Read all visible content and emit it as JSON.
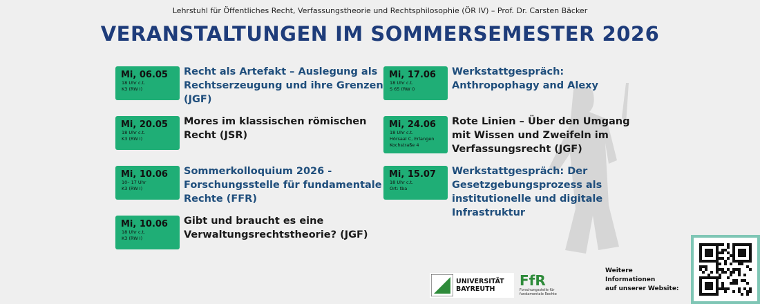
{
  "header": {
    "subtitle": "Lehrstuhl für Öffentliches Recht, Verfassungstheorie und Rechtsphilosophie (ÖR IV) – Prof. Dr. Carsten Bäcker",
    "title": "VERANSTALTUNGEN IM SOMMERSEMESTER 2026"
  },
  "events": [
    {
      "date": "Mi, 06.05",
      "details": [
        "18 Uhr c.t.",
        "K3 (RW I)"
      ],
      "title": [
        "Recht als Artefakt – Auslegung als",
        "Rechtserzeugung und ihre Grenzen",
        "(JGF)"
      ],
      "color": "#1f4e7c"
    },
    {
      "date": "Mi, 20.05",
      "details": [
        "18 Uhr c.t.",
        "K3 (RW I)"
      ],
      "title": [
        "Mores im klassischen römischen",
        "Recht (JSR)"
      ],
      "color": "#1a1a1a"
    },
    {
      "date": "Mi, 10.06",
      "details": [
        "10– 17 Uhr",
        "K3 (RW I)"
      ],
      "title": [
        "Sommerkolloquium 2026 -",
        "Forschungsstelle für fundamentale",
        "Rechte (FFR)"
      ],
      "color": "#1f4e7c"
    },
    {
      "date": "Mi, 10.06",
      "details": [
        "18 Uhr c.t.",
        "K3 (RW I)"
      ],
      "title": [
        "Gibt und braucht es eine",
        "Verwaltungsrechtstheorie? (JGF)"
      ],
      "color": "#1a1a1a"
    },
    {
      "date": "Mi, 17.06",
      "details": [
        "18 Uhr c.t.",
        "S 65 (RW I)"
      ],
      "title": [
        "Werkstattgespräch:",
        "Anthropophagy and Alexy"
      ],
      "color": "#1f4e7c"
    },
    {
      "date": "Mi, 24.06",
      "details": [
        "18 Uhr c.t.",
        "Hörsaal C, Erlangen",
        "Kochstraße 4"
      ],
      "title": [
        "Rote Linien – Über den Umgang",
        "mit Wissen und Zweifeln im",
        "Verfassungsrecht (JGF)"
      ],
      "color": "#1a1a1a"
    },
    {
      "date": "Mi, 15.07",
      "details": [
        "18 Uhr c.t.",
        "Ort: tba"
      ],
      "title": [
        "Werkstattgespräch: Der",
        "Gesetzgebungsprozess als",
        "institutionelle und digitale",
        "Infrastruktur"
      ],
      "color": "#1f4e7c"
    }
  ],
  "footer": {
    "university": [
      "UNIVERSITÄT",
      "BAYREUTH"
    ],
    "ffr_logo": "FfR",
    "ffr_name": [
      "Forschungsstelle für",
      "fundamentale Rechte"
    ],
    "website_note": [
      "Weitere",
      "Informationen",
      "auf unserer Website:"
    ]
  }
}
